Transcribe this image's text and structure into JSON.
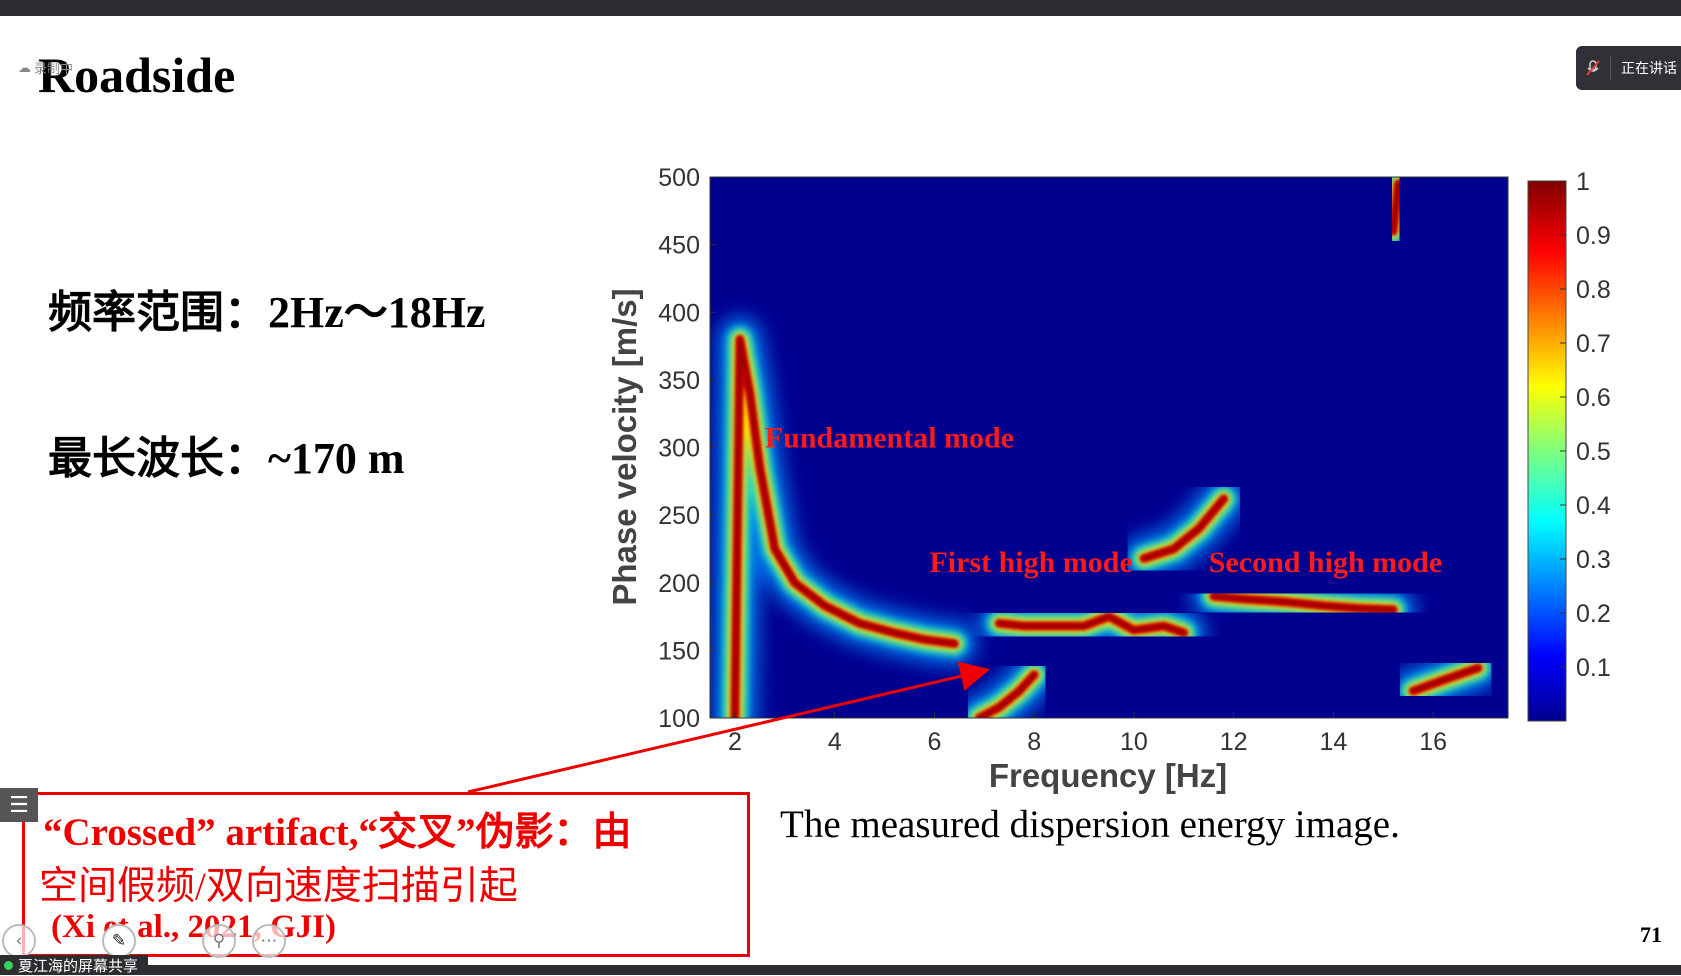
{
  "slide": {
    "title": "Roadside",
    "recording_label": "录制中",
    "freq_range_text": "频率范围：2Hz～18Hz",
    "wavelength_text": "最长波长：~170 m",
    "caption_line1": "“Crossed” artifact,“交叉”伪影：由",
    "caption_line2": "空间假频/双向速度扫描引起",
    "caption_ref": "(Xi et al., 2021, GJI)",
    "figure_caption": "The measured dispersion energy image.",
    "page_number": "71"
  },
  "meeting": {
    "speaking_label": "正在讲话",
    "screen_share_label": "夏江海的屏幕共享",
    "menu_icon": "list-icon",
    "nav_icons": [
      "prev-arrow-icon",
      "pen-icon",
      "zoom-icon",
      "more-icon"
    ]
  },
  "chart_data": {
    "type": "heatmap",
    "xlabel": "Frequency [Hz]",
    "ylabel": "Phase velocity [m/s]",
    "xlim": [
      1.5,
      17.5
    ],
    "ylim": [
      100,
      500
    ],
    "x_ticks": [
      "2",
      "4",
      "6",
      "8",
      "10",
      "12",
      "14",
      "16"
    ],
    "x_tick_values": [
      2,
      4,
      6,
      8,
      10,
      12,
      14,
      16
    ],
    "y_ticks": [
      "100",
      "150",
      "200",
      "250",
      "300",
      "350",
      "400",
      "450",
      "500"
    ],
    "y_tick_values": [
      100,
      150,
      200,
      250,
      300,
      350,
      400,
      450,
      500
    ],
    "colorbar_ticks": [
      "0.1",
      "0.2",
      "0.3",
      "0.4",
      "0.5",
      "0.6",
      "0.7",
      "0.8",
      "0.9",
      "1"
    ],
    "colorbar_tick_values": [
      0.1,
      0.2,
      0.3,
      0.4,
      0.5,
      0.6,
      0.7,
      0.8,
      0.9,
      1.0
    ],
    "colorbar_range": [
      0,
      1
    ],
    "colormap": "jet",
    "background_color": "#00008f",
    "annotations": [
      {
        "text": "Fundamental mode",
        "x": 2.6,
        "y": 300
      },
      {
        "text": "First high mode",
        "x": 5.9,
        "y": 208
      },
      {
        "text": "Second high mode",
        "x": 11.5,
        "y": 208
      }
    ],
    "arrow": {
      "from": [
        2.7,
        100
      ],
      "to": [
        7.0,
        135
      ]
    },
    "modes": [
      {
        "name": "Fundamental mode",
        "x": [
          2.0,
          2.1,
          2.3,
          2.5,
          2.8,
          3.2,
          3.8,
          4.5,
          5.2,
          5.8,
          6.4
        ],
        "y": [
          100,
          380,
          340,
          285,
          225,
          200,
          183,
          170,
          163,
          158,
          155
        ]
      },
      {
        "name": "First high mode",
        "x": [
          7.3,
          7.8,
          8.3,
          9.0,
          9.5,
          10.0,
          10.6,
          11.0
        ],
        "y": [
          170,
          168,
          168,
          168,
          175,
          165,
          168,
          163
        ]
      },
      {
        "name": "Second high mode",
        "x": [
          11.6,
          12.2,
          13.0,
          13.8,
          14.5,
          15.2
        ],
        "y": [
          190,
          188,
          186,
          183,
          181,
          180
        ]
      },
      {
        "name": "",
        "x": [
          10.2,
          10.8,
          11.3,
          11.8
        ],
        "y": [
          218,
          225,
          240,
          262
        ]
      },
      {
        "name": "",
        "x": [
          6.9,
          7.3,
          7.7,
          8.0
        ],
        "y": [
          100,
          108,
          120,
          132
        ]
      },
      {
        "name": "",
        "x": [
          15.6,
          16.2,
          16.9
        ],
        "y": [
          120,
          128,
          137
        ]
      },
      {
        "name": "",
        "x": [
          15.2,
          15.3
        ],
        "y": [
          460,
          495
        ]
      }
    ]
  }
}
